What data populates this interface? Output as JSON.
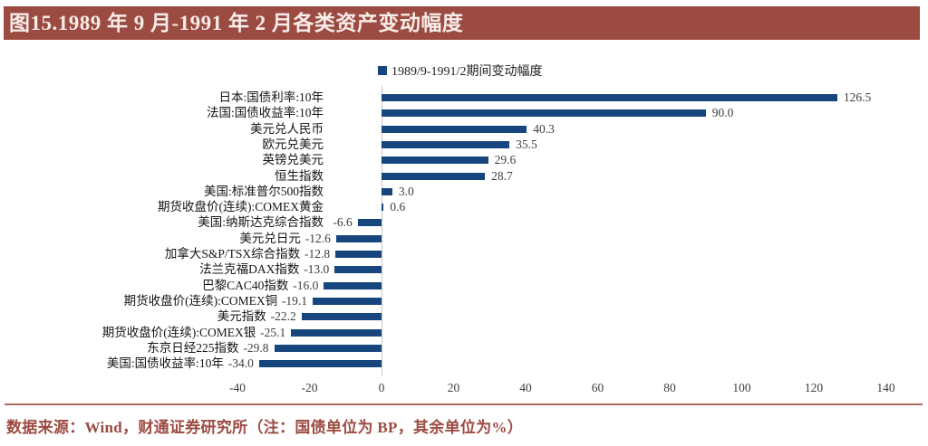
{
  "title": "图15.1989 年 9 月-1991 年 2 月各类资产变动幅度",
  "legend": {
    "label": "1989/9-1991/2期间变动幅度"
  },
  "source_note": "数据来源：Wind，财通证券研究所（注：国债单位为 BP，其余单位为%）",
  "colors": {
    "bar": "#17467e",
    "title_bg": "#9c4b42",
    "title_text": "#f7ece7",
    "source_text": "#9c4b42",
    "divider": "#ad6c60",
    "axis_line": "#c8c8c8"
  },
  "chart_data": {
    "type": "bar",
    "orientation": "horizontal",
    "series_name": "1989/9-1991/2期间变动幅度",
    "categories": [
      "日本:国债利率:10年",
      "法国:国债收益率:10年",
      "美元兑人民币",
      "欧元兑美元",
      "英镑兑美元",
      "恒生指数",
      "美国:标准普尔500指数",
      "期货收盘价(连续):COMEX黄金",
      "美国:纳斯达克综合指数",
      "美元兑日元",
      "加拿大S&P/TSX综合指数",
      "法兰克福DAX指数",
      "巴黎CAC40指数",
      "期货收盘价(连续):COMEX铜",
      "美元指数",
      "期货收盘价(连续):COMEX银",
      "东京日经225指数",
      "美国:国债收益率:10年"
    ],
    "values": [
      126.5,
      90.0,
      40.3,
      35.5,
      29.6,
      28.7,
      3.0,
      0.6,
      -6.6,
      -12.6,
      -12.8,
      -13.0,
      -16.0,
      -19.1,
      -22.2,
      -25.1,
      -29.8,
      -34.0
    ],
    "value_label_decimals": 1,
    "xlim": [
      -40,
      140
    ],
    "xticks": [
      -40,
      -20,
      0,
      20,
      40,
      60,
      80,
      100,
      120,
      140
    ],
    "grid": false,
    "legend_position": "top-center",
    "note": "国债单位为 BP，其余单位为%"
  }
}
